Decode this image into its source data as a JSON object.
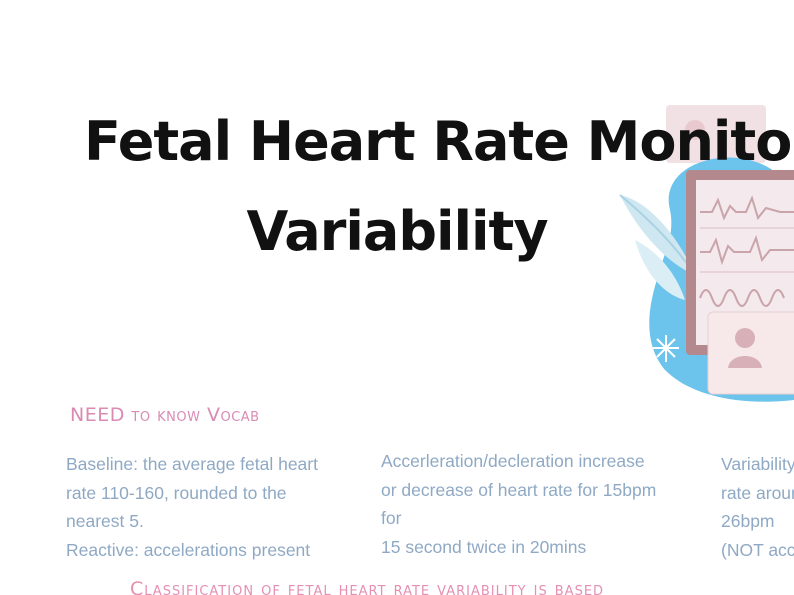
{
  "title": {
    "line1": "Fetal Heart Rate Monitoring",
    "line2": "Variability"
  },
  "vocab": {
    "heading": "NEED to know Vocab",
    "columns": [
      {
        "lines": [
          "Baseline: the average fetal heart",
          "rate 110-160, rounded to the",
          "nearest 5.",
          "Reactive: accelerations present"
        ]
      },
      {
        "lines": [
          "Accerleration/decleration increase",
          "or decrease of heart rate for 15bpm",
          "for",
          "15 second twice in 20mins"
        ]
      },
      {
        "lines": [
          "Variability",
          "rate around",
          "26bpm",
          "(NOT accel"
        ]
      }
    ]
  },
  "classification": {
    "text": "Classification of fetal heart rate variability is based"
  },
  "illustration": {
    "icons": [
      "leaf-icon",
      "monitor-icon",
      "patient-card-icon",
      "sparkle-icon"
    ],
    "colors": {
      "blob": "#6cc3ec",
      "leaf": "#cfe7f1",
      "monitor_frame": "#b4898e",
      "monitor_screen": "#f4e9ec",
      "card": "#f7e8ea",
      "accent_pink": "#e8c9cf"
    }
  }
}
